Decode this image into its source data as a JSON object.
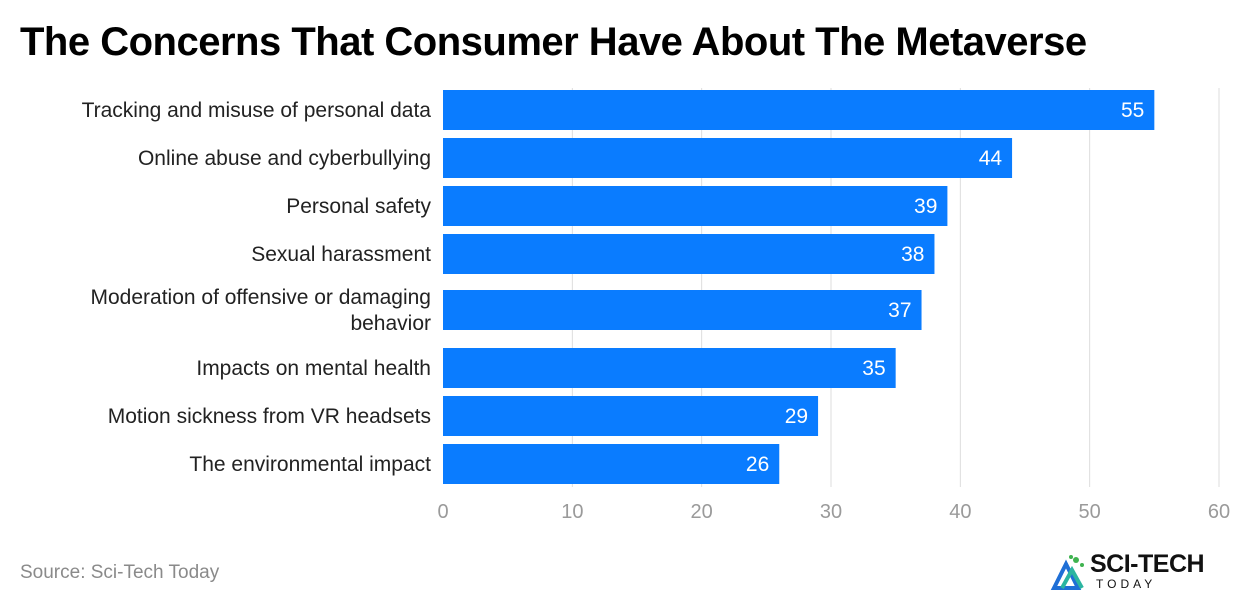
{
  "chart_data": {
    "type": "bar",
    "orientation": "horizontal",
    "title": "The Concerns That Consumer Have About The Metaverse",
    "categories": [
      [
        "Tracking and misuse of personal data"
      ],
      [
        "Online abuse and cyberbullying"
      ],
      [
        "Personal safety"
      ],
      [
        "Sexual harassment"
      ],
      [
        "Moderation of offensive or damaging",
        "behavior"
      ],
      [
        "Impacts on mental health"
      ],
      [
        "Motion sickness from VR headsets"
      ],
      [
        "The environmental impact"
      ]
    ],
    "values": [
      55,
      44,
      39,
      38,
      37,
      35,
      29,
      26
    ],
    "xlim": [
      0,
      60
    ],
    "xticks": [
      0,
      10,
      20,
      30,
      40,
      50,
      60
    ],
    "xlabel": "",
    "ylabel": "",
    "grid": true,
    "bar_color": "#0a7cff",
    "label_color": "#ffffff"
  },
  "source": "Source: Sci-Tech Today",
  "logo": {
    "name": "SCI-TECH",
    "sub": "TODAY",
    "icon": "sci-tech-logo-icon"
  }
}
